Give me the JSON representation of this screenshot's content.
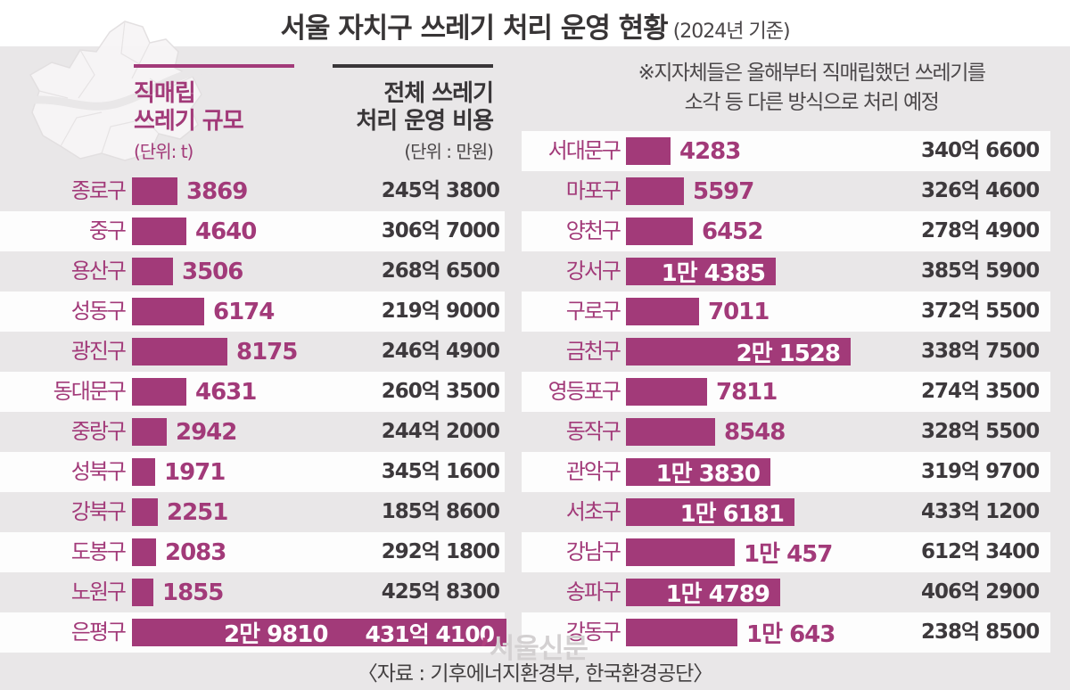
{
  "title": {
    "main": "서울 자치구 쓰레기 처리 운영 현황",
    "sub": "(2024년 기준)"
  },
  "legend": {
    "landfill_line1": "직매립",
    "landfill_line2": "쓰레기 규모",
    "landfill_unit": "(단위: t)",
    "cost_line1": "전체 쓰레기",
    "cost_line2": "처리 운영 비용",
    "cost_unit": "(단위 : 만원)"
  },
  "note": {
    "line1": "※지자체들은 올해부터 직매립했던 쓰레기를",
    "line2": "소각 등 다른 방식으로 처리 예정"
  },
  "footer": {
    "watermark_quote": "’",
    "watermark_text": "서울신문",
    "source": "〈자료 : 기후에너지환경부, 한국환경공단〉"
  },
  "colors": {
    "accent": "#a23a79",
    "cost_text": "#3d393c",
    "bg_gray": "#e9e7e8",
    "stripe_white": "#fdfdfd"
  },
  "chart_data": {
    "type": "bar",
    "title": "서울 자치구 쓰레기 처리 운영 현황 (2024년 기준)",
    "value_series_name": "직매립 쓰레기 규모",
    "value_unit": "t",
    "cost_series_name": "전체 쓰레기 처리 운영 비용",
    "cost_unit": "만원",
    "columns": [
      {
        "rows": [
          {
            "district": "종로구",
            "value": 3869,
            "value_label": "3869",
            "cost_label": "245억 3800",
            "inside": false,
            "full": false
          },
          {
            "district": "중구",
            "value": 4640,
            "value_label": "4640",
            "cost_label": "306억 7000",
            "inside": false,
            "full": false
          },
          {
            "district": "용산구",
            "value": 3506,
            "value_label": "3506",
            "cost_label": "268억 6500",
            "inside": false,
            "full": false
          },
          {
            "district": "성동구",
            "value": 6174,
            "value_label": "6174",
            "cost_label": "219억 9000",
            "inside": false,
            "full": false
          },
          {
            "district": "광진구",
            "value": 8175,
            "value_label": "8175",
            "cost_label": "246억 4900",
            "inside": false,
            "full": false
          },
          {
            "district": "동대문구",
            "value": 4631,
            "value_label": "4631",
            "cost_label": "260억 3500",
            "inside": false,
            "full": false
          },
          {
            "district": "중랑구",
            "value": 2942,
            "value_label": "2942",
            "cost_label": "244억 2000",
            "inside": false,
            "full": false
          },
          {
            "district": "성북구",
            "value": 1971,
            "value_label": "1971",
            "cost_label": "345억 1600",
            "inside": false,
            "full": false
          },
          {
            "district": "강북구",
            "value": 2251,
            "value_label": "2251",
            "cost_label": "185억 8600",
            "inside": false,
            "full": false
          },
          {
            "district": "도봉구",
            "value": 2083,
            "value_label": "2083",
            "cost_label": "292억 1800",
            "inside": false,
            "full": false
          },
          {
            "district": "노원구",
            "value": 1855,
            "value_label": "1855",
            "cost_label": "425억 8300",
            "inside": false,
            "full": false
          },
          {
            "district": "은평구",
            "value": 29810,
            "value_label": "2만 9810",
            "cost_label": "431억 4100",
            "inside": true,
            "full": true
          }
        ]
      },
      {
        "rows": [
          {
            "district": "서대문구",
            "value": 4283,
            "value_label": "4283",
            "cost_label": "340억 6600",
            "inside": false,
            "full": false
          },
          {
            "district": "마포구",
            "value": 5597,
            "value_label": "5597",
            "cost_label": "326억 4600",
            "inside": false,
            "full": false
          },
          {
            "district": "양천구",
            "value": 6452,
            "value_label": "6452",
            "cost_label": "278억 4900",
            "inside": false,
            "full": false
          },
          {
            "district": "강서구",
            "value": 14385,
            "value_label": "1만 4385",
            "cost_label": "385억 5900",
            "inside": true,
            "full": false
          },
          {
            "district": "구로구",
            "value": 7011,
            "value_label": "7011",
            "cost_label": "372억 5500",
            "inside": false,
            "full": false
          },
          {
            "district": "금천구",
            "value": 21528,
            "value_label": "2만 1528",
            "cost_label": "338억 7500",
            "inside": true,
            "full": false
          },
          {
            "district": "영등포구",
            "value": 7811,
            "value_label": "7811",
            "cost_label": "274억 3500",
            "inside": false,
            "full": false
          },
          {
            "district": "동작구",
            "value": 8548,
            "value_label": "8548",
            "cost_label": "328억 5500",
            "inside": false,
            "full": false
          },
          {
            "district": "관악구",
            "value": 13830,
            "value_label": "1만 3830",
            "cost_label": "319억 9700",
            "inside": true,
            "full": false
          },
          {
            "district": "서초구",
            "value": 16181,
            "value_label": "1만 6181",
            "cost_label": "433억 1200",
            "inside": true,
            "full": false
          },
          {
            "district": "강남구",
            "value": 10457,
            "value_label": "1만 457",
            "cost_label": "612억 3400",
            "inside": false,
            "full": false
          },
          {
            "district": "송파구",
            "value": 14789,
            "value_label": "1만 4789",
            "cost_label": "406억 2900",
            "inside": true,
            "full": false
          },
          {
            "district": "강동구",
            "value": 10643,
            "value_label": "1만 643",
            "cost_label": "238억 8500",
            "inside": false,
            "full": false
          }
        ]
      }
    ]
  }
}
